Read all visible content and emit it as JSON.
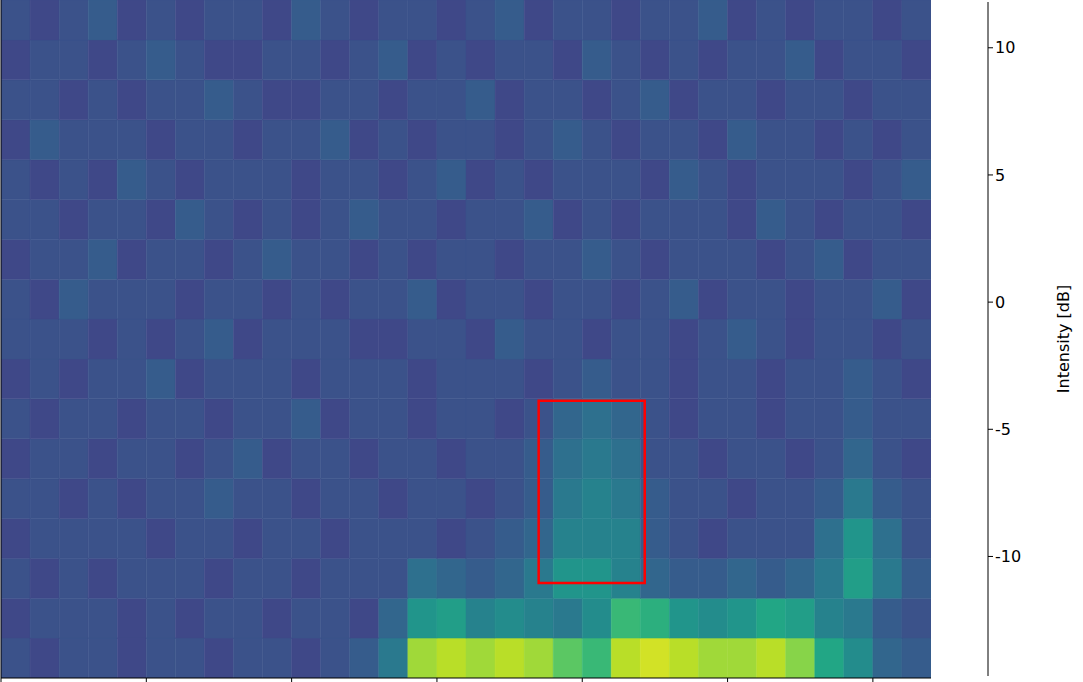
{
  "chart_data": {
    "type": "heatmap",
    "xlim": [
      0,
      6.4
    ],
    "xticks": [
      0,
      1,
      2,
      3,
      4,
      5,
      6
    ],
    "ylim": [
      0,
      17
    ],
    "yticks": [],
    "tick_labels": false,
    "x_bins": [
      0,
      0.2,
      0.4,
      0.6,
      0.8,
      1.0,
      1.2,
      1.4,
      1.6,
      1.8,
      2.0,
      2.2,
      2.4,
      2.6,
      2.8,
      3.0,
      3.2,
      3.4,
      3.6,
      3.8,
      4.0,
      4.2,
      4.4,
      4.6,
      4.8,
      5.0,
      5.2,
      5.4,
      5.6,
      5.8,
      6.0,
      6.2,
      6.4
    ],
    "y_bins": [
      0,
      1,
      2,
      3,
      4,
      5,
      6,
      7,
      8,
      9,
      10,
      11,
      12,
      13,
      14,
      15,
      16,
      17
    ],
    "cells": [
      [
        -8,
        -9,
        -8,
        -8,
        -9,
        -8,
        -8,
        -9,
        -8,
        -8,
        -9,
        -8,
        -7,
        -4,
        8,
        9,
        8,
        9,
        8,
        5,
        3,
        9,
        10,
        9,
        8,
        8,
        9,
        7,
        1,
        -2,
        -6,
        -7
      ],
      [
        -9,
        -8,
        -8,
        -8,
        -9,
        -8,
        -9,
        -8,
        -8,
        -9,
        -8,
        -8,
        -9,
        -6,
        -1,
        0,
        -3,
        -2,
        -3,
        -4,
        -2,
        3,
        2,
        -1,
        -2,
        -1,
        1,
        0,
        -3,
        -4,
        -7,
        -8
      ],
      [
        -8,
        -9,
        -8,
        -9,
        -8,
        -8,
        -8,
        -9,
        -8,
        -8,
        -9,
        -8,
        -8,
        -8,
        -5,
        -6,
        -7,
        -6,
        -4,
        -1,
        -1,
        -3,
        -6,
        -7,
        -7,
        -6,
        -7,
        -6,
        -4,
        0,
        -4,
        -7
      ],
      [
        -9,
        -8,
        -8,
        -8,
        -8,
        -9,
        -8,
        -8,
        -9,
        -8,
        -8,
        -9,
        -8,
        -8,
        -8,
        -9,
        -8,
        -7,
        -6,
        -3,
        -3,
        -3,
        -7,
        -8,
        -9,
        -8,
        -8,
        -8,
        -5,
        -1,
        -5,
        -8
      ],
      [
        -8,
        -8,
        -9,
        -8,
        -9,
        -8,
        -8,
        -7,
        -8,
        -8,
        -9,
        -8,
        -8,
        -9,
        -8,
        -8,
        -9,
        -8,
        -7,
        -4,
        -3,
        -4,
        -7,
        -8,
        -8,
        -9,
        -8,
        -8,
        -7,
        -4,
        -7,
        -8
      ],
      [
        -9,
        -8,
        -8,
        -9,
        -8,
        -8,
        -9,
        -8,
        -7,
        -9,
        -8,
        -8,
        -9,
        -8,
        -8,
        -9,
        -8,
        -8,
        -7,
        -5,
        -4,
        -5,
        -8,
        -8,
        -9,
        -8,
        -8,
        -9,
        -8,
        -6,
        -8,
        -9
      ],
      [
        -8,
        -9,
        -8,
        -8,
        -9,
        -8,
        -8,
        -9,
        -8,
        -8,
        -7,
        -9,
        -8,
        -8,
        -9,
        -8,
        -8,
        -9,
        -8,
        -6,
        -5,
        -6,
        -8,
        -9,
        -8,
        -8,
        -9,
        -8,
        -8,
        -7,
        -8,
        -8
      ],
      [
        -9,
        -8,
        -9,
        -8,
        -8,
        -7,
        -9,
        -8,
        -8,
        -8,
        -9,
        -8,
        -8,
        -8,
        -9,
        -8,
        -8,
        -8,
        -9,
        -8,
        -7,
        -8,
        -8,
        -9,
        -8,
        -8,
        -9,
        -8,
        -8,
        -7,
        -8,
        -9
      ],
      [
        -8,
        -8,
        -8,
        -9,
        -8,
        -9,
        -8,
        -7,
        -9,
        -8,
        -8,
        -8,
        -9,
        -9,
        -8,
        -8,
        -9,
        -7,
        -8,
        -8,
        -9,
        -8,
        -8,
        -9,
        -8,
        -7,
        -8,
        -9,
        -8,
        -8,
        -9,
        -8
      ],
      [
        -8,
        -9,
        -7,
        -8,
        -8,
        -8,
        -9,
        -8,
        -8,
        -9,
        -8,
        -9,
        -8,
        -8,
        -7,
        -9,
        -8,
        -8,
        -9,
        -8,
        -8,
        -9,
        -8,
        -7,
        -9,
        -8,
        -8,
        -9,
        -8,
        -8,
        -7,
        -9
      ],
      [
        -9,
        -8,
        -8,
        -7,
        -9,
        -8,
        -8,
        -9,
        -8,
        -7,
        -8,
        -8,
        -9,
        -8,
        -9,
        -8,
        -8,
        -9,
        -8,
        -8,
        -7,
        -8,
        -9,
        -8,
        -8,
        -8,
        -9,
        -8,
        -7,
        -9,
        -8,
        -8
      ],
      [
        -8,
        -8,
        -9,
        -8,
        -8,
        -9,
        -7,
        -8,
        -9,
        -8,
        -9,
        -8,
        -7,
        -8,
        -8,
        -9,
        -8,
        -8,
        -7,
        -9,
        -8,
        -9,
        -8,
        -8,
        -8,
        -9,
        -7,
        -8,
        -9,
        -8,
        -8,
        -9
      ],
      [
        -8,
        -9,
        -8,
        -9,
        -7,
        -8,
        -9,
        -8,
        -8,
        -8,
        -9,
        -8,
        -8,
        -9,
        -8,
        -7,
        -9,
        -8,
        -9,
        -8,
        -8,
        -8,
        -9,
        -7,
        -8,
        -9,
        -8,
        -8,
        -8,
        -9,
        -8,
        -7
      ],
      [
        -9,
        -7,
        -8,
        -8,
        -8,
        -9,
        -8,
        -8,
        -9,
        -8,
        -8,
        -7,
        -9,
        -8,
        -9,
        -8,
        -8,
        -9,
        -8,
        -7,
        -8,
        -9,
        -8,
        -8,
        -9,
        -7,
        -8,
        -8,
        -9,
        -8,
        -9,
        -8
      ],
      [
        -8,
        -8,
        -9,
        -8,
        -9,
        -8,
        -8,
        -7,
        -8,
        -9,
        -9,
        -8,
        -8,
        -9,
        -8,
        -8,
        -7,
        -9,
        -8,
        -8,
        -9,
        -8,
        -7,
        -9,
        -8,
        -8,
        -9,
        -8,
        -8,
        -9,
        -8,
        -8
      ],
      [
        -9,
        -8,
        -8,
        -9,
        -8,
        -7,
        -8,
        -9,
        -9,
        -8,
        -8,
        -9,
        -8,
        -7,
        -9,
        -8,
        -9,
        -8,
        -8,
        -9,
        -7,
        -8,
        -9,
        -8,
        -9,
        -8,
        -8,
        -7,
        -9,
        -8,
        -8,
        -9
      ],
      [
        -8,
        -9,
        -8,
        -7,
        -9,
        -8,
        -9,
        -8,
        -8,
        -9,
        -7,
        -8,
        -9,
        -8,
        -8,
        -9,
        -8,
        -7,
        -9,
        -8,
        -8,
        -9,
        -8,
        -8,
        -7,
        -9,
        -8,
        -9,
        -8,
        -8,
        -9,
        -8
      ]
    ],
    "colorbar": {
      "label": "Intensity [dB]",
      "range": [
        -14.7,
        11.8
      ],
      "ticks": [
        -10,
        -5,
        0,
        5,
        10
      ]
    },
    "box": {
      "x": [
        3.7,
        4.43
      ],
      "y": [
        2.38,
        6.95
      ],
      "color": "#ff0000"
    }
  }
}
